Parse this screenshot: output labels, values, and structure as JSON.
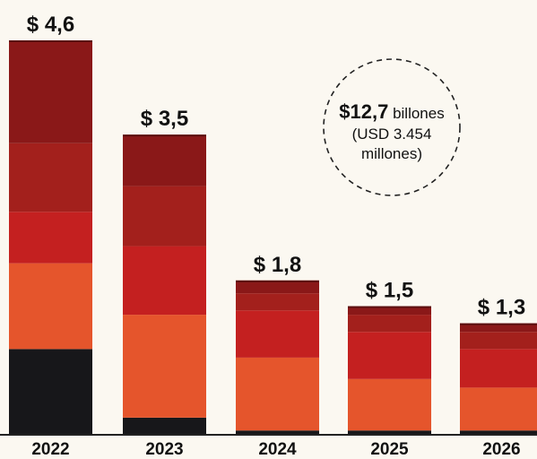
{
  "chart_data": {
    "type": "bar",
    "stacked": true,
    "categories": [
      "2022",
      "2023",
      "2024",
      "2025",
      "2026"
    ],
    "value_labels": [
      "$ 4,6",
      "$ 3,5",
      "$ 1,8",
      "$ 1,5",
      "$ 1,3"
    ],
    "totals": [
      4.6,
      3.5,
      1.8,
      1.5,
      1.3
    ],
    "ylim": [
      0,
      4.6
    ],
    "series": [
      {
        "color": "#17171a",
        "values": [
          1.0,
          0.2,
          0.05,
          0.05,
          0.05
        ]
      },
      {
        "color": "#e5552c",
        "values": [
          1.0,
          1.2,
          0.85,
          0.6,
          0.5
        ]
      },
      {
        "color": "#c42020",
        "values": [
          0.6,
          0.8,
          0.55,
          0.55,
          0.45
        ]
      },
      {
        "color": "#a3201c",
        "values": [
          0.8,
          0.7,
          0.2,
          0.2,
          0.2
        ]
      },
      {
        "color": "#8a1818",
        "values": [
          1.2,
          0.6,
          0.15,
          0.1,
          0.1
        ]
      }
    ],
    "grid": false,
    "legend": "none"
  },
  "annotation": {
    "amount": "$12,7",
    "line1_rest": " billones",
    "line2": "(USD 3.454",
    "line3": "millones)"
  },
  "colors": {
    "background": "#fbf8f1",
    "baseline": "#222222",
    "circle_stroke": "#222222"
  }
}
